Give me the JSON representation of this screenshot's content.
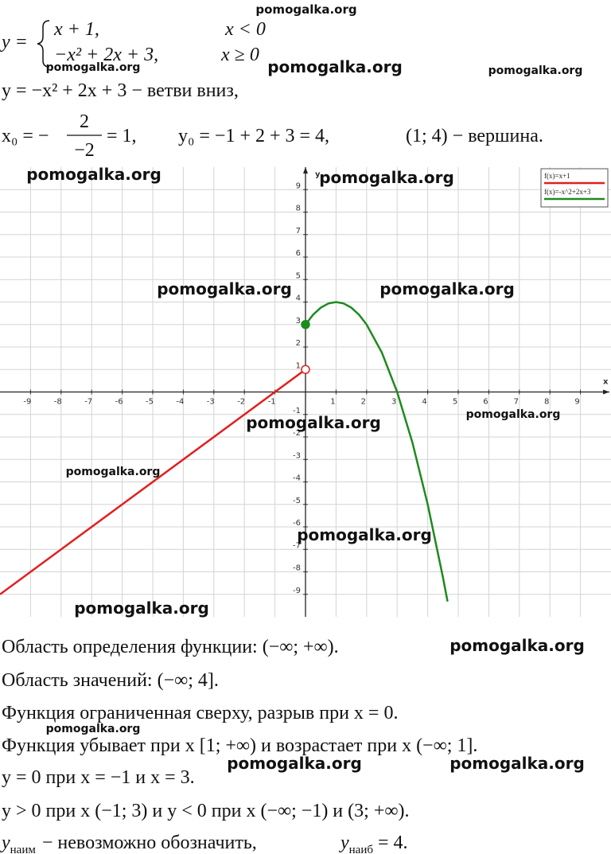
{
  "header": {
    "piecewise": {
      "lhs": "y =",
      "case1": "x + 1,",
      "cond1": "x < 0",
      "case2": "−x² + 2x + 3,",
      "cond2": "x ≥ 0"
    },
    "line2": "y = −x² + 2x + 3 − ветви вниз,",
    "vertex": {
      "x0_lhs": "x₀ = −",
      "num": "2",
      "den": "−2",
      "x0_rhs": "= 1,",
      "y0": "y₀ = −1 + 2 + 3 = 4,",
      "point": "(1; 4) − вершина."
    }
  },
  "chart_data": {
    "type": "line",
    "xlabel": "x",
    "ylabel": "y",
    "xlim": [
      -10,
      10
    ],
    "ylim": [
      -10,
      10
    ],
    "xticks": [
      -9,
      -8,
      -7,
      -6,
      -5,
      -4,
      -3,
      -2,
      -1,
      1,
      2,
      3,
      4,
      5,
      6,
      7,
      8,
      9
    ],
    "yticks": [
      -9,
      -8,
      -7,
      -6,
      -5,
      -4,
      -3,
      -2,
      -1,
      1,
      2,
      3,
      4,
      5,
      6,
      7,
      8,
      9
    ],
    "grid": true,
    "legend": "upper right",
    "series": [
      {
        "name": "f(x)=x+1",
        "color": "#e02020",
        "x": [
          -10,
          0
        ],
        "values": [
          -9,
          1
        ]
      },
      {
        "name": "f(x)=-x^2+2x+3",
        "color": "#1e8a1e",
        "x": [
          0,
          0.25,
          0.5,
          0.75,
          1,
          1.25,
          1.5,
          1.75,
          2,
          2.5,
          3,
          3.5,
          4,
          4.5,
          4.65
        ],
        "values": [
          3,
          3.4375,
          3.75,
          3.9375,
          4,
          3.9375,
          3.75,
          3.4375,
          3,
          1.75,
          0,
          -2.25,
          -5,
          -8.25,
          -9.32
        ]
      }
    ],
    "points": [
      {
        "x": 0,
        "y": 3,
        "color": "#1e8a1e",
        "filled": true
      },
      {
        "x": 0,
        "y": 1,
        "color": "#e02020",
        "filled": false
      }
    ]
  },
  "footer": {
    "lines": [
      "Область определения функции: (−∞; +∞).",
      "Область значений: (−∞; 4].",
      "Функция ограниченная сверху, разрыв при x = 0.",
      "Функция убывает при x [1; +∞) и возрастает при x (−∞; 1].",
      "y = 0 при x = −1 и x = 3.",
      "y > 0 при x (−1; 3) и y < 0 при x (−∞; −1) и (3; +∞)."
    ],
    "last": {
      "ymin": "y",
      "ymin_sub": "наим",
      "ymin_text": "− невозможно обозначить,",
      "ymax": "y",
      "ymax_sub": "наиб",
      "ymax_text": "= 4."
    }
  },
  "watermarks": [
    "pomogalka.org",
    "pomogalka.org",
    "pomogalka.org",
    "pomogalka.org",
    "pomogalka.org",
    "pomogalka.org",
    "pomogalka.org",
    "pomogalka.org",
    "pomogalka.org",
    "pomogalka.org",
    "pomogalka.org",
    "pomogalka.org",
    "pomogalka.org",
    "pomogalka.org",
    "pomogalka.org",
    "pomogalka.org",
    "pomogalka.org"
  ]
}
